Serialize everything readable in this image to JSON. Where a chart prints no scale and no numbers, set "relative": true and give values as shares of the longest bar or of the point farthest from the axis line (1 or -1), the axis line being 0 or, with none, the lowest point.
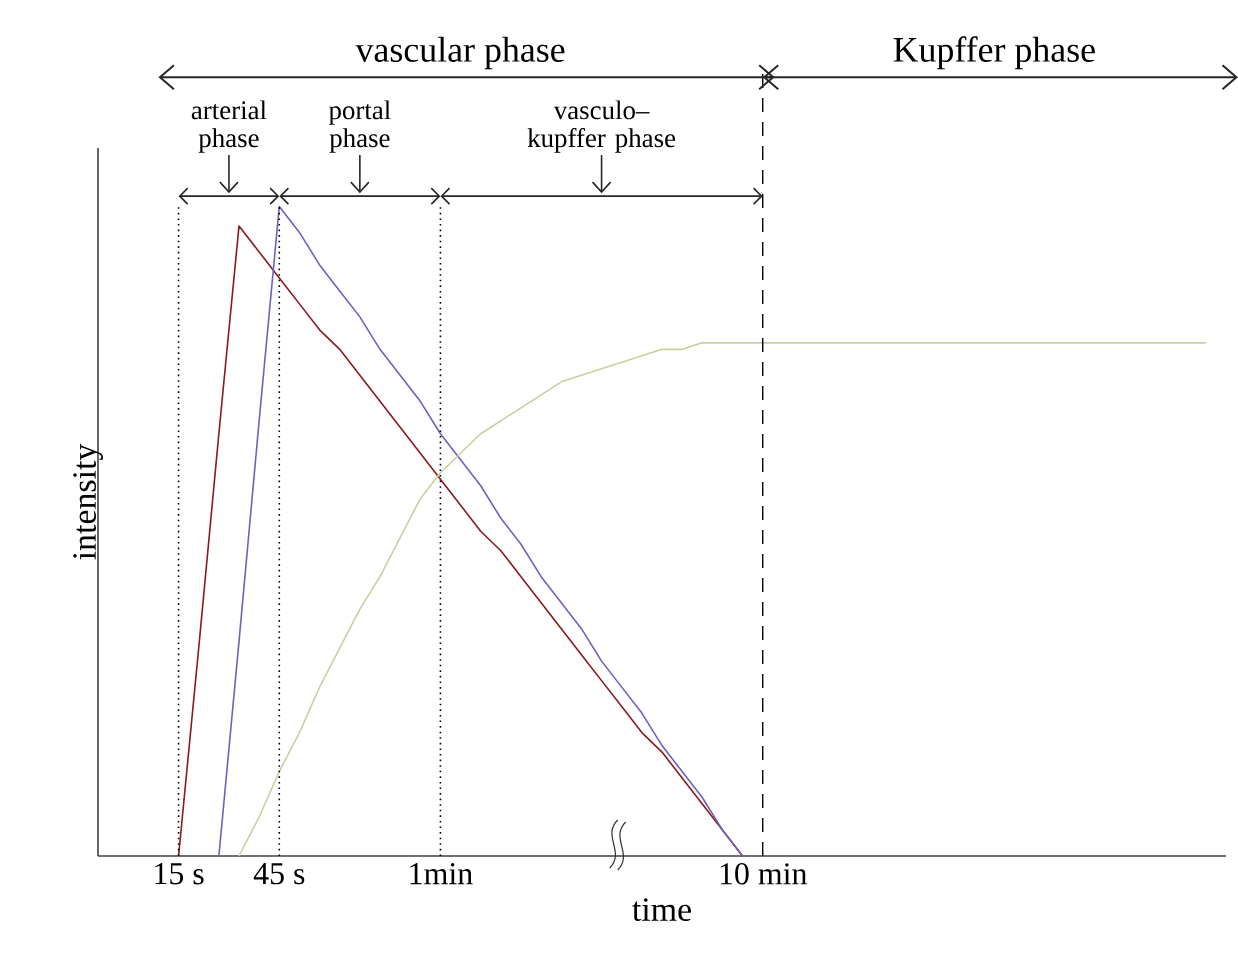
{
  "chart_data": {
    "type": "line",
    "relative": true,
    "xlabel": "time",
    "ylabel": "intensity",
    "categories": [
      null,
      null,
      null,
      null,
      "15 s",
      null,
      null,
      null,
      null,
      "45 s",
      null,
      null,
      null,
      null,
      null,
      null,
      null,
      "1min",
      null,
      null,
      null,
      null,
      null,
      null,
      null,
      null,
      null,
      null,
      null,
      null,
      null,
      null,
      null,
      "10 min",
      null,
      null,
      null,
      null,
      null,
      null,
      null,
      null,
      null,
      null,
      null,
      null,
      null,
      null,
      null,
      null,
      null,
      null,
      null,
      null,
      null,
      null,
      null
    ],
    "series": [
      {
        "color": "#8b1a1a",
        "values": [
          null,
          null,
          null,
          null,
          0,
          0.32,
          0.65,
          0.97,
          0.93,
          0.89,
          0.85,
          0.81,
          0.78,
          0.74,
          0.7,
          0.66,
          0.62,
          0.58,
          0.54,
          0.5,
          0.47,
          0.43,
          0.39,
          0.35,
          0.31,
          0.27,
          0.23,
          0.19,
          0.16,
          0.12,
          0.08,
          0.04,
          0,
          null,
          null,
          null,
          null,
          null,
          null,
          null,
          null,
          null,
          null,
          null,
          null,
          null,
          null,
          null,
          null,
          null,
          null,
          null,
          null,
          null,
          null,
          null,
          null
        ]
      },
      {
        "color": "#6b62c0",
        "values": [
          null,
          null,
          null,
          null,
          null,
          null,
          0,
          0.33,
          0.67,
          1,
          0.96,
          0.91,
          0.87,
          0.83,
          0.78,
          0.74,
          0.7,
          0.65,
          0.61,
          0.57,
          0.52,
          0.48,
          0.43,
          0.39,
          0.35,
          0.3,
          0.26,
          0.22,
          0.17,
          0.13,
          0.09,
          0.04,
          0,
          null,
          null,
          null,
          null,
          null,
          null,
          null,
          null,
          null,
          null,
          null,
          null,
          null,
          null,
          null,
          null,
          null,
          null,
          null,
          null,
          null,
          null,
          null,
          null
        ]
      },
      {
        "color": "#c8d0a0",
        "values": [
          null,
          null,
          null,
          null,
          null,
          null,
          null,
          0,
          0.06,
          0.13,
          0.19,
          0.26,
          0.32,
          0.38,
          0.43,
          0.49,
          0.55,
          0.59,
          0.62,
          0.65,
          0.67,
          0.69,
          0.71,
          0.73,
          0.74,
          0.75,
          0.76,
          0.77,
          0.78,
          0.78,
          0.79,
          0.79,
          0.79,
          0.79,
          0.79,
          0.79,
          0.79,
          0.79,
          0.79,
          0.79,
          0.79,
          0.79,
          0.79,
          0.79,
          0.79,
          0.79,
          0.79,
          0.79,
          0.79,
          0.79,
          0.79,
          0.79,
          0.79,
          0.79,
          0.79,
          0.79,
          null
        ]
      }
    ],
    "ref_lines": [
      {
        "axis": "x",
        "value": "15 s",
        "line_style": "dotted"
      },
      {
        "axis": "x",
        "value": "45 s",
        "line_style": "dotted"
      },
      {
        "axis": "x",
        "value": "1min",
        "line_style": "dotted"
      },
      {
        "axis": "x",
        "value": "10 min",
        "line_style": "dashed"
      }
    ],
    "annotations": [
      "vascular phase",
      "Kupffer phase",
      "arterial phase",
      "portal phase",
      "vasculo–kupffer phase"
    ],
    "grid": false,
    "marker": "none",
    "line_style": "solid"
  }
}
